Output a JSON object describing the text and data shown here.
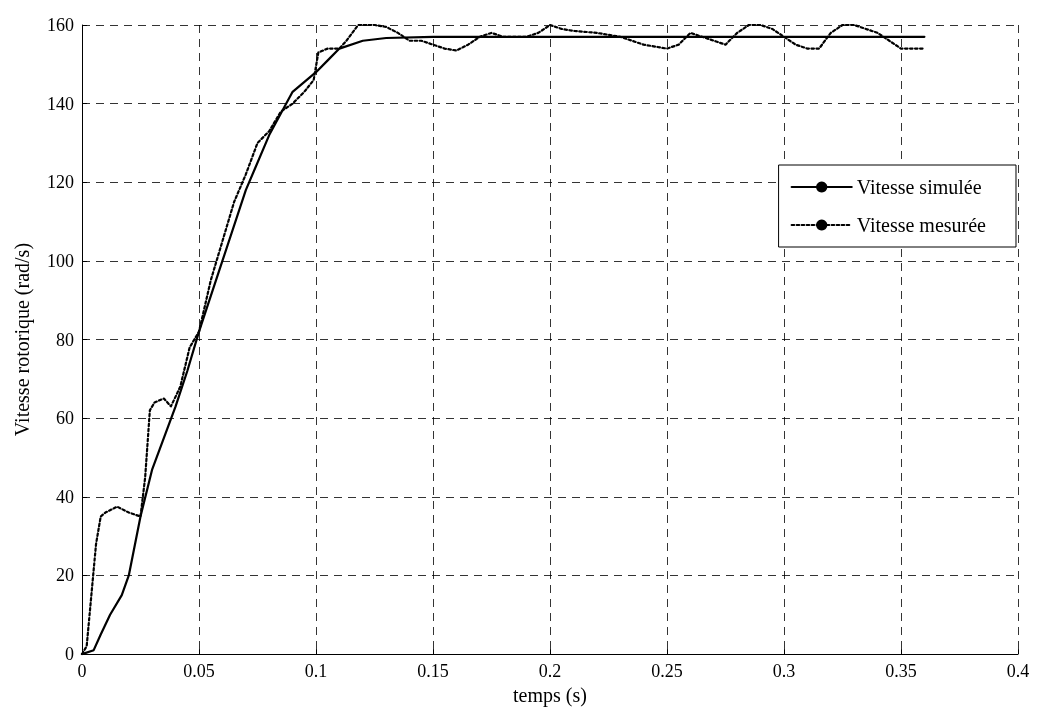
{
  "chart_data": {
    "type": "line",
    "xlabel": "temps (s)",
    "ylabel": "Vitesse rotorique (rad/s)",
    "xlim": [
      0,
      0.4
    ],
    "xticks": [
      0,
      0.05,
      0.1,
      0.15,
      0.2,
      0.25,
      0.3,
      0.35,
      0.4
    ],
    "ylim": [
      0,
      160
    ],
    "yticks": [
      0,
      20,
      40,
      60,
      80,
      100,
      120,
      140,
      160
    ],
    "grid": true,
    "legend": "right",
    "marker": "none",
    "series": [
      {
        "name": "Vitesse simulée",
        "color": "#000000",
        "line_style": "solid",
        "x": [
          0,
          0.005,
          0.008,
          0.012,
          0.017,
          0.02,
          0.025,
          0.03,
          0.035,
          0.04,
          0.045,
          0.05,
          0.06,
          0.07,
          0.08,
          0.09,
          0.1,
          0.105,
          0.11,
          0.12,
          0.13,
          0.15,
          0.36
        ],
        "values": [
          0,
          1,
          5,
          10,
          15,
          20,
          35,
          47,
          55,
          63,
          72,
          82,
          100,
          118,
          132,
          143,
          148,
          151,
          154,
          156,
          156.7,
          157,
          157
        ]
      },
      {
        "name": "Vitesse mesurée",
        "color": "#000000",
        "line_style": "dotted",
        "x": [
          0,
          0.002,
          0.004,
          0.006,
          0.008,
          0.01,
          0.015,
          0.02,
          0.025,
          0.027,
          0.029,
          0.031,
          0.035,
          0.038,
          0.042,
          0.046,
          0.05,
          0.055,
          0.06,
          0.065,
          0.07,
          0.075,
          0.08,
          0.085,
          0.09,
          0.095,
          0.099,
          0.101,
          0.105,
          0.11,
          0.113,
          0.118,
          0.125,
          0.13,
          0.135,
          0.14,
          0.145,
          0.15,
          0.155,
          0.16,
          0.165,
          0.17,
          0.175,
          0.18,
          0.19,
          0.195,
          0.2,
          0.205,
          0.21,
          0.22,
          0.23,
          0.24,
          0.25,
          0.255,
          0.26,
          0.265,
          0.27,
          0.275,
          0.28,
          0.285,
          0.29,
          0.295,
          0.3,
          0.305,
          0.31,
          0.315,
          0.32,
          0.325,
          0.33,
          0.335,
          0.34,
          0.345,
          0.35,
          0.355,
          0.36
        ],
        "values": [
          0,
          2,
          15,
          28,
          35,
          36,
          37.5,
          36,
          35,
          45,
          62,
          64,
          65,
          63,
          68,
          78,
          82,
          95,
          105,
          115,
          122,
          130,
          133,
          138,
          140,
          143,
          146,
          153,
          154,
          154,
          156,
          160,
          160,
          159.5,
          158,
          156,
          156,
          155,
          154,
          153.5,
          155,
          157,
          158,
          157,
          157,
          158,
          160,
          159,
          158.5,
          158,
          157,
          155,
          154,
          155,
          158,
          157,
          156,
          155,
          158,
          160,
          160,
          159,
          157,
          155,
          154,
          154,
          158,
          160,
          160,
          159,
          158,
          156,
          154,
          154,
          154
        ]
      }
    ]
  }
}
